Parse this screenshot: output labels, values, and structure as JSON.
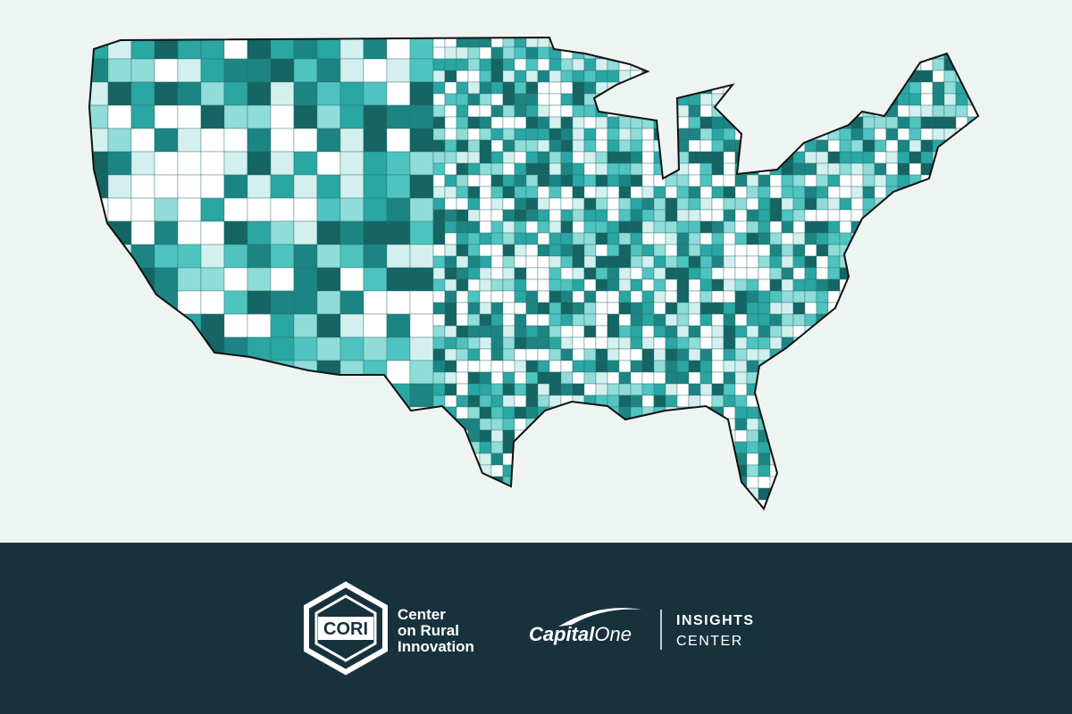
{
  "logo_cori": {
    "mark": "CORI",
    "name": [
      "Center",
      "on Rural",
      "Innovation"
    ]
  },
  "logo_capital_one": {
    "wordmark": [
      "Capital",
      "One"
    ],
    "unit": [
      "INSIGHTS",
      "CENTER"
    ]
  }
}
